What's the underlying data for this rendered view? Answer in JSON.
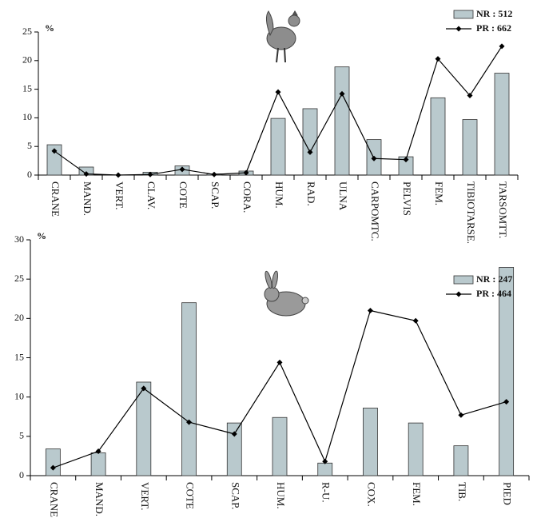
{
  "chart_data": [
    {
      "type": "bar",
      "ylabel": "%",
      "categories": [
        "CRANE",
        "MAND.",
        "VERT.",
        "CLAV.",
        "COTE",
        "SCAP.",
        "CORA.",
        "HUM.",
        "RAD.",
        "ULNA",
        "CARPOMTC.",
        "PELVIS",
        "FEM.",
        "TIBIOTARSE.",
        "TARSOMTT."
      ],
      "series": [
        {
          "name": "NR : 512",
          "type": "bar",
          "color": "#b9c9cd",
          "values": [
            5.3,
            1.4,
            0,
            0.5,
            1.6,
            0.2,
            0.7,
            9.9,
            11.6,
            18.9,
            6.2,
            3.2,
            13.5,
            9.7,
            17.8
          ]
        },
        {
          "name": "PR : 662",
          "type": "line",
          "color": "#000000",
          "values": [
            4.2,
            0.2,
            0,
            0.1,
            1.0,
            0.1,
            0.4,
            14.5,
            4.0,
            14.2,
            2.9,
            2.7,
            20.3,
            13.9,
            22.5
          ]
        }
      ],
      "ylim": [
        0,
        25
      ],
      "yticks": [
        0,
        5,
        10,
        15,
        20,
        25
      ],
      "grid": false,
      "legend": "top-right"
    },
    {
      "type": "bar",
      "ylabel": "%",
      "categories": [
        "CRANE",
        "MAND.",
        "VERT.",
        "COTE",
        "SCAP.",
        "HUM.",
        "R-U.",
        "COX.",
        "FEM.",
        "TIB.",
        "PIED"
      ],
      "series": [
        {
          "name": "NR : 247",
          "type": "bar",
          "color": "#b9c9cd",
          "values": [
            3.4,
            2.9,
            11.9,
            22.0,
            6.7,
            7.4,
            1.6,
            8.6,
            6.7,
            3.8,
            26.5
          ]
        },
        {
          "name": "PR : 464",
          "type": "line",
          "color": "#000000",
          "values": [
            1.0,
            3.1,
            11.1,
            6.8,
            5.3,
            14.4,
            1.8,
            21.0,
            19.7,
            7.7,
            9.4
          ]
        }
      ],
      "ylim": [
        0,
        30
      ],
      "yticks": [
        0,
        5,
        10,
        15,
        20,
        25,
        30
      ],
      "grid": false,
      "legend": "top-right"
    }
  ]
}
